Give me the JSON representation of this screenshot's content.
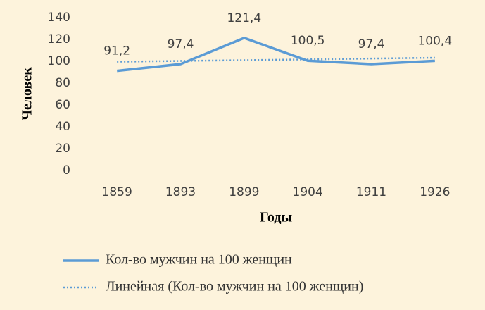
{
  "chart_data": {
    "type": "line",
    "x_label": "Годы",
    "y_label": "Человек",
    "categories": [
      "1859",
      "1893",
      "1899",
      "1904",
      "1911",
      "1926"
    ],
    "series": [
      {
        "name": "Кол-во мужчин на 100 женщин",
        "color": "#5b9bd5",
        "style": "solid",
        "values": [
          91.2,
          97.4,
          121.4,
          100.5,
          97.4,
          100.4
        ],
        "value_labels": [
          "91,2",
          "97,4",
          "121,4",
          "100,5",
          "97,4",
          "100,4"
        ]
      },
      {
        "name": "Линейная (Кол-во мужчин на 100 женщин)",
        "color": "#5b9bd5",
        "style": "dotted",
        "values": [
          99.6,
          100.3,
          101.0,
          101.7,
          102.5,
          103.2
        ]
      }
    ],
    "ylim": [
      0,
      140
    ],
    "yticks": [
      0,
      20,
      40,
      60,
      80,
      100,
      120,
      140
    ],
    "grid": false
  }
}
